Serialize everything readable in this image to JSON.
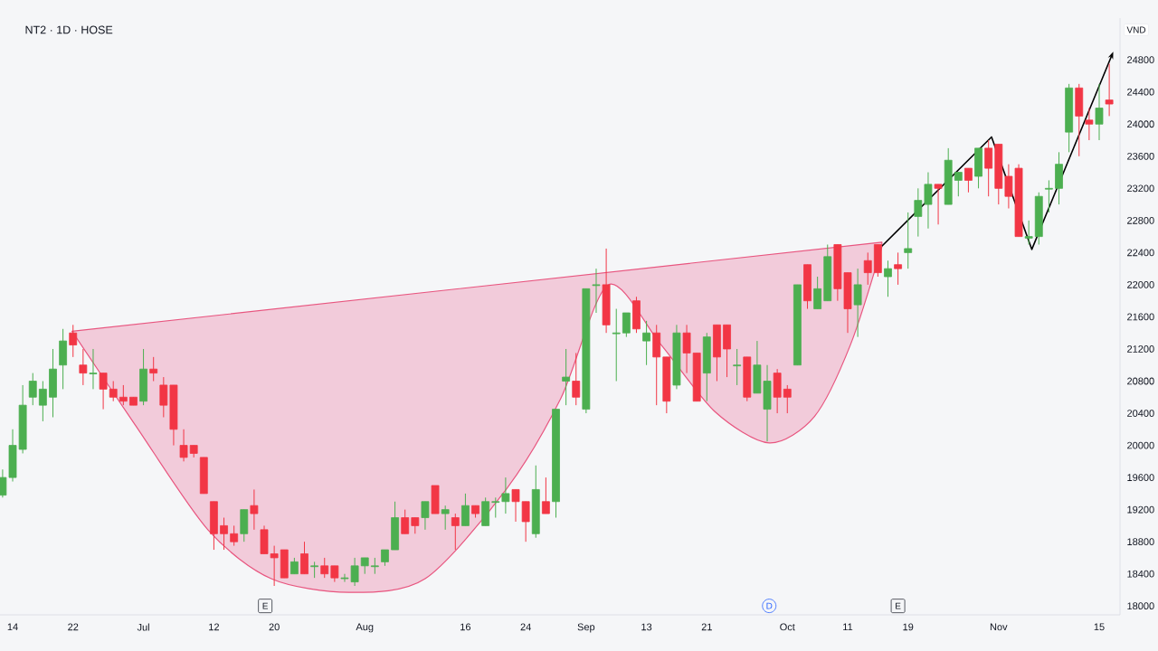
{
  "chart_data": {
    "type": "candlestick",
    "title": "NT2 · 1D · HOSE",
    "ylabel": "VND",
    "annotations": [
      "E",
      "D",
      "E"
    ],
    "categories": [
      null,
      "14",
      null,
      null,
      null,
      null,
      null,
      "22",
      null,
      null,
      null,
      null,
      null,
      null,
      "Jul",
      null,
      null,
      null,
      null,
      null,
      null,
      "12",
      null,
      null,
      null,
      null,
      null,
      "20",
      null,
      null,
      null,
      null,
      null,
      null,
      null,
      null,
      "Aug",
      null,
      null,
      null,
      null,
      null,
      null,
      null,
      null,
      null,
      "16",
      null,
      null,
      null,
      null,
      null,
      "24",
      null,
      null,
      null,
      null,
      null,
      "Sep",
      null,
      null,
      null,
      null,
      null,
      "13",
      null,
      null,
      null,
      null,
      null,
      "21",
      null,
      null,
      null,
      null,
      null,
      null,
      null,
      "Oct",
      null,
      null,
      null,
      null,
      null,
      "11",
      null,
      null,
      null,
      null,
      null,
      "19",
      null,
      null,
      null,
      null,
      null,
      null,
      null,
      null,
      "Nov",
      null,
      null,
      null,
      null,
      null,
      null,
      null,
      null,
      null,
      "15",
      null
    ],
    "ohlc": [
      [
        19380,
        19700,
        19350,
        19600
      ],
      [
        19600,
        20200,
        19550,
        20000
      ],
      [
        19950,
        20750,
        19900,
        20500
      ],
      [
        20600,
        20900,
        20500,
        20800
      ],
      [
        20500,
        20800,
        20300,
        20700
      ],
      [
        20600,
        21200,
        20350,
        20950
      ],
      [
        21000,
        21450,
        20700,
        21300
      ],
      [
        21400,
        21500,
        21100,
        21250
      ],
      [
        21000,
        21200,
        20750,
        20900
      ],
      [
        20890,
        21200,
        20700,
        20900
      ],
      [
        20900,
        20900,
        20450,
        20700
      ],
      [
        20700,
        20800,
        20550,
        20600
      ],
      [
        20600,
        20750,
        20500,
        20550
      ],
      [
        20600,
        20600,
        20500,
        20500
      ],
      [
        20550,
        21200,
        20500,
        20950
      ],
      [
        20950,
        21100,
        20800,
        20900
      ],
      [
        20750,
        20850,
        20350,
        20500
      ],
      [
        20750,
        20750,
        20000,
        20200
      ],
      [
        20000,
        20200,
        19800,
        19850
      ],
      [
        20000,
        20000,
        19850,
        19900
      ],
      [
        19850,
        19850,
        19400,
        19400
      ],
      [
        19300,
        19300,
        18700,
        18900
      ],
      [
        19000,
        19100,
        18700,
        18900
      ],
      [
        18900,
        19000,
        18750,
        18800
      ],
      [
        18900,
        19200,
        18800,
        19200
      ],
      [
        19250,
        19450,
        18950,
        19150
      ],
      [
        18950,
        19000,
        18650,
        18650
      ],
      [
        18650,
        18750,
        18250,
        18600
      ],
      [
        18700,
        18700,
        18350,
        18350
      ],
      [
        18400,
        18600,
        18400,
        18550
      ],
      [
        18650,
        18800,
        18400,
        18400
      ],
      [
        18490,
        18550,
        18350,
        18500
      ],
      [
        18500,
        18600,
        18350,
        18400
      ],
      [
        18500,
        18500,
        18300,
        18350
      ],
      [
        18340,
        18400,
        18300,
        18350
      ],
      [
        18300,
        18600,
        18250,
        18500
      ],
      [
        18500,
        18600,
        18400,
        18600
      ],
      [
        18490,
        18600,
        18400,
        18500
      ],
      [
        18550,
        18700,
        18500,
        18700
      ],
      [
        18700,
        19300,
        18700,
        19100
      ],
      [
        19100,
        19200,
        18900,
        18900
      ],
      [
        19100,
        19100,
        18900,
        19000
      ],
      [
        19100,
        19300,
        18950,
        19300
      ],
      [
        19500,
        19500,
        19150,
        19150
      ],
      [
        19150,
        19250,
        18950,
        19200
      ],
      [
        19100,
        19150,
        18700,
        19000
      ],
      [
        19000,
        19400,
        19000,
        19250
      ],
      [
        19250,
        19250,
        19100,
        19150
      ],
      [
        19000,
        19350,
        19000,
        19300
      ],
      [
        19290,
        19350,
        19100,
        19300
      ],
      [
        19300,
        19600,
        19150,
        19400
      ],
      [
        19450,
        19450,
        19050,
        19300
      ],
      [
        19300,
        19300,
        18800,
        19050
      ],
      [
        18900,
        19750,
        18850,
        19450
      ],
      [
        19300,
        19600,
        19150,
        19150
      ],
      [
        19300,
        20450,
        19100,
        20450
      ],
      [
        20800,
        21200,
        20500,
        20850
      ],
      [
        20800,
        21150,
        20500,
        20600
      ],
      [
        20450,
        21950,
        20400,
        21950
      ],
      [
        21990,
        22200,
        21650,
        22000
      ],
      [
        22000,
        22450,
        21400,
        21500
      ],
      [
        21390,
        21700,
        20800,
        21400
      ],
      [
        21400,
        21650,
        21350,
        21650
      ],
      [
        21800,
        21850,
        21400,
        21450
      ],
      [
        21300,
        21550,
        21000,
        21400
      ],
      [
        21400,
        21500,
        20500,
        21100
      ],
      [
        21100,
        21100,
        20400,
        20550
      ],
      [
        20750,
        21500,
        20700,
        21400
      ],
      [
        21400,
        21500,
        20900,
        21150
      ],
      [
        21150,
        21150,
        20550,
        20550
      ],
      [
        20900,
        21400,
        20550,
        21350
      ],
      [
        21500,
        21500,
        20800,
        21100
      ],
      [
        21500,
        21500,
        20850,
        21200
      ],
      [
        20990,
        21200,
        20750,
        21000
      ],
      [
        21100,
        21100,
        20550,
        20600
      ],
      [
        20650,
        21300,
        20650,
        21000
      ],
      [
        20450,
        21000,
        20050,
        20800
      ],
      [
        20900,
        20950,
        20400,
        20600
      ],
      [
        20700,
        20750,
        20400,
        20600
      ],
      [
        21000,
        22000,
        21000,
        22000
      ],
      [
        22250,
        22250,
        21700,
        21800
      ],
      [
        21700,
        22100,
        21700,
        21950
      ],
      [
        21800,
        22500,
        21800,
        22350
      ],
      [
        22500,
        22500,
        21800,
        21950
      ],
      [
        22150,
        22150,
        21400,
        21700
      ],
      [
        21750,
        22200,
        21350,
        22000
      ],
      [
        22300,
        22400,
        22000,
        22150
      ],
      [
        22500,
        22500,
        22100,
        22150
      ],
      [
        22100,
        22300,
        21850,
        22200
      ],
      [
        22250,
        22400,
        22000,
        22200
      ],
      [
        22400,
        22900,
        22200,
        22450
      ],
      [
        22850,
        23200,
        22600,
        23050
      ],
      [
        23000,
        23400,
        22700,
        23250
      ],
      [
        23250,
        23250,
        22750,
        23200
      ],
      [
        23000,
        23700,
        23000,
        23550
      ],
      [
        23300,
        23400,
        23100,
        23400
      ],
      [
        23450,
        23450,
        23150,
        23300
      ],
      [
        23350,
        23700,
        23200,
        23700
      ],
      [
        23700,
        23800,
        23100,
        23450
      ],
      [
        23750,
        23750,
        23000,
        23200
      ],
      [
        23350,
        23500,
        22950,
        23100
      ],
      [
        23450,
        23500,
        22600,
        22600
      ],
      [
        22580,
        22800,
        22500,
        22600
      ],
      [
        22600,
        23150,
        22500,
        23100
      ],
      [
        23190,
        23300,
        22900,
        23200
      ],
      [
        23200,
        23650,
        23000,
        23500
      ],
      [
        23900,
        24500,
        23650,
        24450
      ],
      [
        24450,
        24500,
        23600,
        24100
      ],
      [
        24050,
        24200,
        23800,
        24000
      ],
      [
        24000,
        24500,
        23800,
        24200
      ],
      [
        24300,
        24750,
        24100,
        24250
      ]
    ],
    "colors": [
      "#4caf50",
      "#4caf50",
      "#4caf50",
      "#4caf50",
      "#4caf50",
      "#4caf50",
      "#4caf50",
      "#f23645",
      "#f23645",
      "#4caf50",
      "#f23645",
      "#f23645",
      "#f23645",
      "#f23645",
      "#4caf50",
      "#f23645",
      "#f23645",
      "#f23645",
      "#f23645",
      "#f23645",
      "#f23645",
      "#f23645",
      "#f23645",
      "#f23645",
      "#4caf50",
      "#f23645",
      "#f23645",
      "#f23645",
      "#f23645",
      "#4caf50",
      "#f23645",
      "#4caf50",
      "#f23645",
      "#f23645",
      "#4caf50",
      "#4caf50",
      "#4caf50",
      "#4caf50",
      "#4caf50",
      "#4caf50",
      "#f23645",
      "#f23645",
      "#4caf50",
      "#f23645",
      "#4caf50",
      "#f23645",
      "#4caf50",
      "#f23645",
      "#4caf50",
      "#4caf50",
      "#4caf50",
      "#f23645",
      "#f23645",
      "#4caf50",
      "#f23645",
      "#4caf50",
      "#4caf50",
      "#f23645",
      "#4caf50",
      "#4caf50",
      "#f23645",
      "#4caf50",
      "#4caf50",
      "#f23645",
      "#4caf50",
      "#f23645",
      "#f23645",
      "#4caf50",
      "#f23645",
      "#f23645",
      "#4caf50",
      "#f23645",
      "#f23645",
      "#4caf50",
      "#f23645",
      "#4caf50",
      "#4caf50",
      "#f23645",
      "#f23645",
      "#4caf50",
      "#f23645",
      "#4caf50",
      "#4caf50",
      "#f23645",
      "#f23645",
      "#4caf50",
      "#f23645",
      "#f23645",
      "#4caf50",
      "#f23645",
      "#4caf50",
      "#4caf50",
      "#4caf50",
      "#f23645",
      "#4caf50",
      "#4caf50",
      "#f23645",
      "#4caf50",
      "#f23645",
      "#f23645",
      "#f23645",
      "#f23645",
      "#4caf50",
      "#4caf50",
      "#4caf50",
      "#4caf50",
      "#4caf50",
      "#f23645",
      "#f23645",
      "#4caf50",
      "#f23645"
    ],
    "ylim": [
      17890,
      25320
    ],
    "yticks": [
      18000,
      18400,
      18800,
      19200,
      19600,
      20000,
      20400,
      20800,
      21200,
      21600,
      22000,
      22400,
      22800,
      23200,
      23600,
      24000,
      24400,
      24800
    ]
  }
}
